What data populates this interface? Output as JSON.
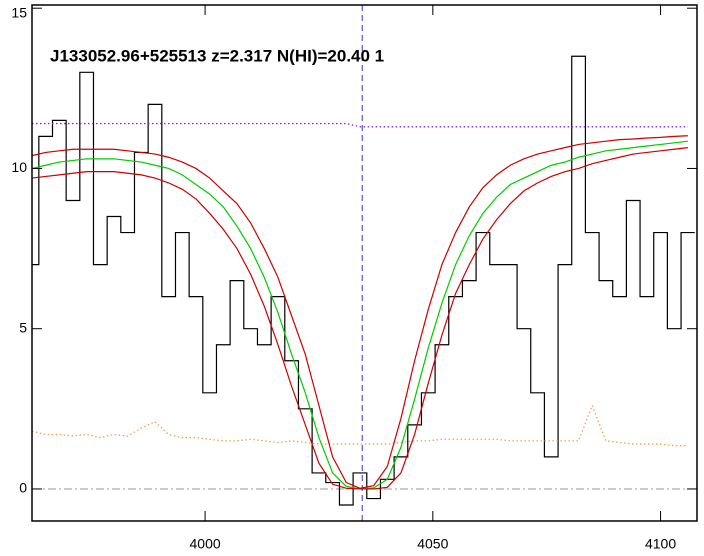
{
  "chart_data": {
    "type": "line",
    "title": "J133052.96+525513 z=2.317 N(HI)=20.40 1",
    "x": [
      3962,
      3965,
      3968,
      3971,
      3974,
      3977,
      3980,
      3983,
      3986,
      3989,
      3992,
      3995,
      3998,
      4001,
      4004,
      4007,
      4010,
      4013,
      4016,
      4019,
      4022,
      4025,
      4028,
      4031,
      4034,
      4037,
      4040,
      4043,
      4046,
      4049,
      4052,
      4055,
      4058,
      4061,
      4064,
      4067,
      4070,
      4073,
      4076,
      4079,
      4082,
      4085,
      4088,
      4091,
      4094,
      4097,
      4100,
      4103,
      4106
    ],
    "series": [
      {
        "color": "#000000",
        "style": "step",
        "values": [
          7,
          11,
          11.5,
          9,
          13,
          7,
          8.5,
          8,
          10.5,
          12,
          6,
          8,
          6,
          3,
          4.5,
          6.5,
          5,
          4.5,
          6,
          4,
          2.5,
          0.5,
          0.2,
          -0.5,
          0.5,
          -0.3,
          0.3,
          1,
          2,
          3,
          4.5,
          6,
          6.5,
          8,
          7,
          7,
          5,
          3,
          1,
          7,
          13.5,
          8,
          6.5,
          6,
          9,
          6,
          8,
          5,
          8
        ]
      },
      {
        "color": "#f0a050",
        "style": "dotted",
        "values": [
          1.8,
          1.7,
          1.7,
          1.65,
          1.7,
          1.6,
          1.7,
          1.65,
          1.9,
          2.1,
          1.7,
          1.6,
          1.6,
          1.55,
          1.5,
          1.5,
          1.55,
          1.5,
          1.45,
          1.5,
          1.45,
          1.4,
          1.4,
          1.4,
          1.4,
          1.4,
          1.4,
          1.45,
          1.5,
          1.5,
          1.55,
          1.55,
          1.55,
          1.55,
          1.55,
          1.5,
          1.5,
          1.5,
          1.5,
          1.5,
          1.5,
          2.6,
          1.5,
          1.45,
          1.4,
          1.4,
          1.4,
          1.35,
          1.35
        ]
      },
      {
        "color": "#8a2be2",
        "style": "dotted",
        "values": [
          11.4,
          11.4,
          11.4,
          11.4,
          11.4,
          11.4,
          11.4,
          11.4,
          11.4,
          11.4,
          11.4,
          11.4,
          11.4,
          11.4,
          11.4,
          11.4,
          11.4,
          11.4,
          11.4,
          11.4,
          11.4,
          11.4,
          11.4,
          11.4,
          11.3,
          11.3,
          11.3,
          11.3,
          11.3,
          11.3,
          11.3,
          11.3,
          11.3,
          11.3,
          11.3,
          11.3,
          11.3,
          11.3,
          11.3,
          11.3,
          11.3,
          11.3,
          11.3,
          11.3,
          11.3,
          11.3,
          11.3,
          11.3,
          11.3
        ]
      },
      {
        "color": "#00cc00",
        "style": "solid",
        "values": [
          10.0,
          10.1,
          10.2,
          10.25,
          10.3,
          10.3,
          10.3,
          10.25,
          10.2,
          10.1,
          10.0,
          9.8,
          9.5,
          9.2,
          8.8,
          8.2,
          7.5,
          6.6,
          5.5,
          4.2,
          3.0,
          1.6,
          0.5,
          0.08,
          0.0,
          0.03,
          0.3,
          1.3,
          2.8,
          4.4,
          5.8,
          7.0,
          7.9,
          8.6,
          9.1,
          9.5,
          9.7,
          9.9,
          10.1,
          10.2,
          10.35,
          10.45,
          10.55,
          10.6,
          10.65,
          10.7,
          10.75,
          10.8,
          10.85
        ]
      },
      {
        "color": "#cc0000",
        "style": "solid",
        "values": [
          10.4,
          10.5,
          10.55,
          10.6,
          10.6,
          10.6,
          10.6,
          10.55,
          10.5,
          10.45,
          10.35,
          10.2,
          10.0,
          9.7,
          9.3,
          8.9,
          8.3,
          7.5,
          6.6,
          5.4,
          4.2,
          2.6,
          1.0,
          0.2,
          0.02,
          0.1,
          0.7,
          2.2,
          4.0,
          5.6,
          7.0,
          8.0,
          8.8,
          9.4,
          9.8,
          10.1,
          10.3,
          10.45,
          10.55,
          10.65,
          10.75,
          10.8,
          10.85,
          10.9,
          10.92,
          10.95,
          10.97,
          11.0,
          11.02
        ]
      },
      {
        "color": "#cc0000",
        "style": "solid",
        "values": [
          9.7,
          9.75,
          9.8,
          9.85,
          9.9,
          9.9,
          9.9,
          9.85,
          9.8,
          9.7,
          9.55,
          9.35,
          9.05,
          8.6,
          8.1,
          7.5,
          6.7,
          5.7,
          4.5,
          3.2,
          2.0,
          0.8,
          0.15,
          0.02,
          0.0,
          0.0,
          0.05,
          0.5,
          1.7,
          3.3,
          4.8,
          6.1,
          7.0,
          7.8,
          8.4,
          8.9,
          9.3,
          9.55,
          9.75,
          9.9,
          10.0,
          10.15,
          10.25,
          10.35,
          10.45,
          10.5,
          10.55,
          10.6,
          10.65
        ]
      }
    ],
    "vline": {
      "value": 4034.5,
      "color": "#3333cc"
    },
    "hline": {
      "value": 0,
      "color": "#999999"
    },
    "xlim": [
      3962,
      4108
    ],
    "ylim": [
      -1,
      15.1
    ],
    "xticks": [
      4000,
      4050,
      4100
    ],
    "yticks": [
      0,
      5,
      10,
      15
    ]
  }
}
